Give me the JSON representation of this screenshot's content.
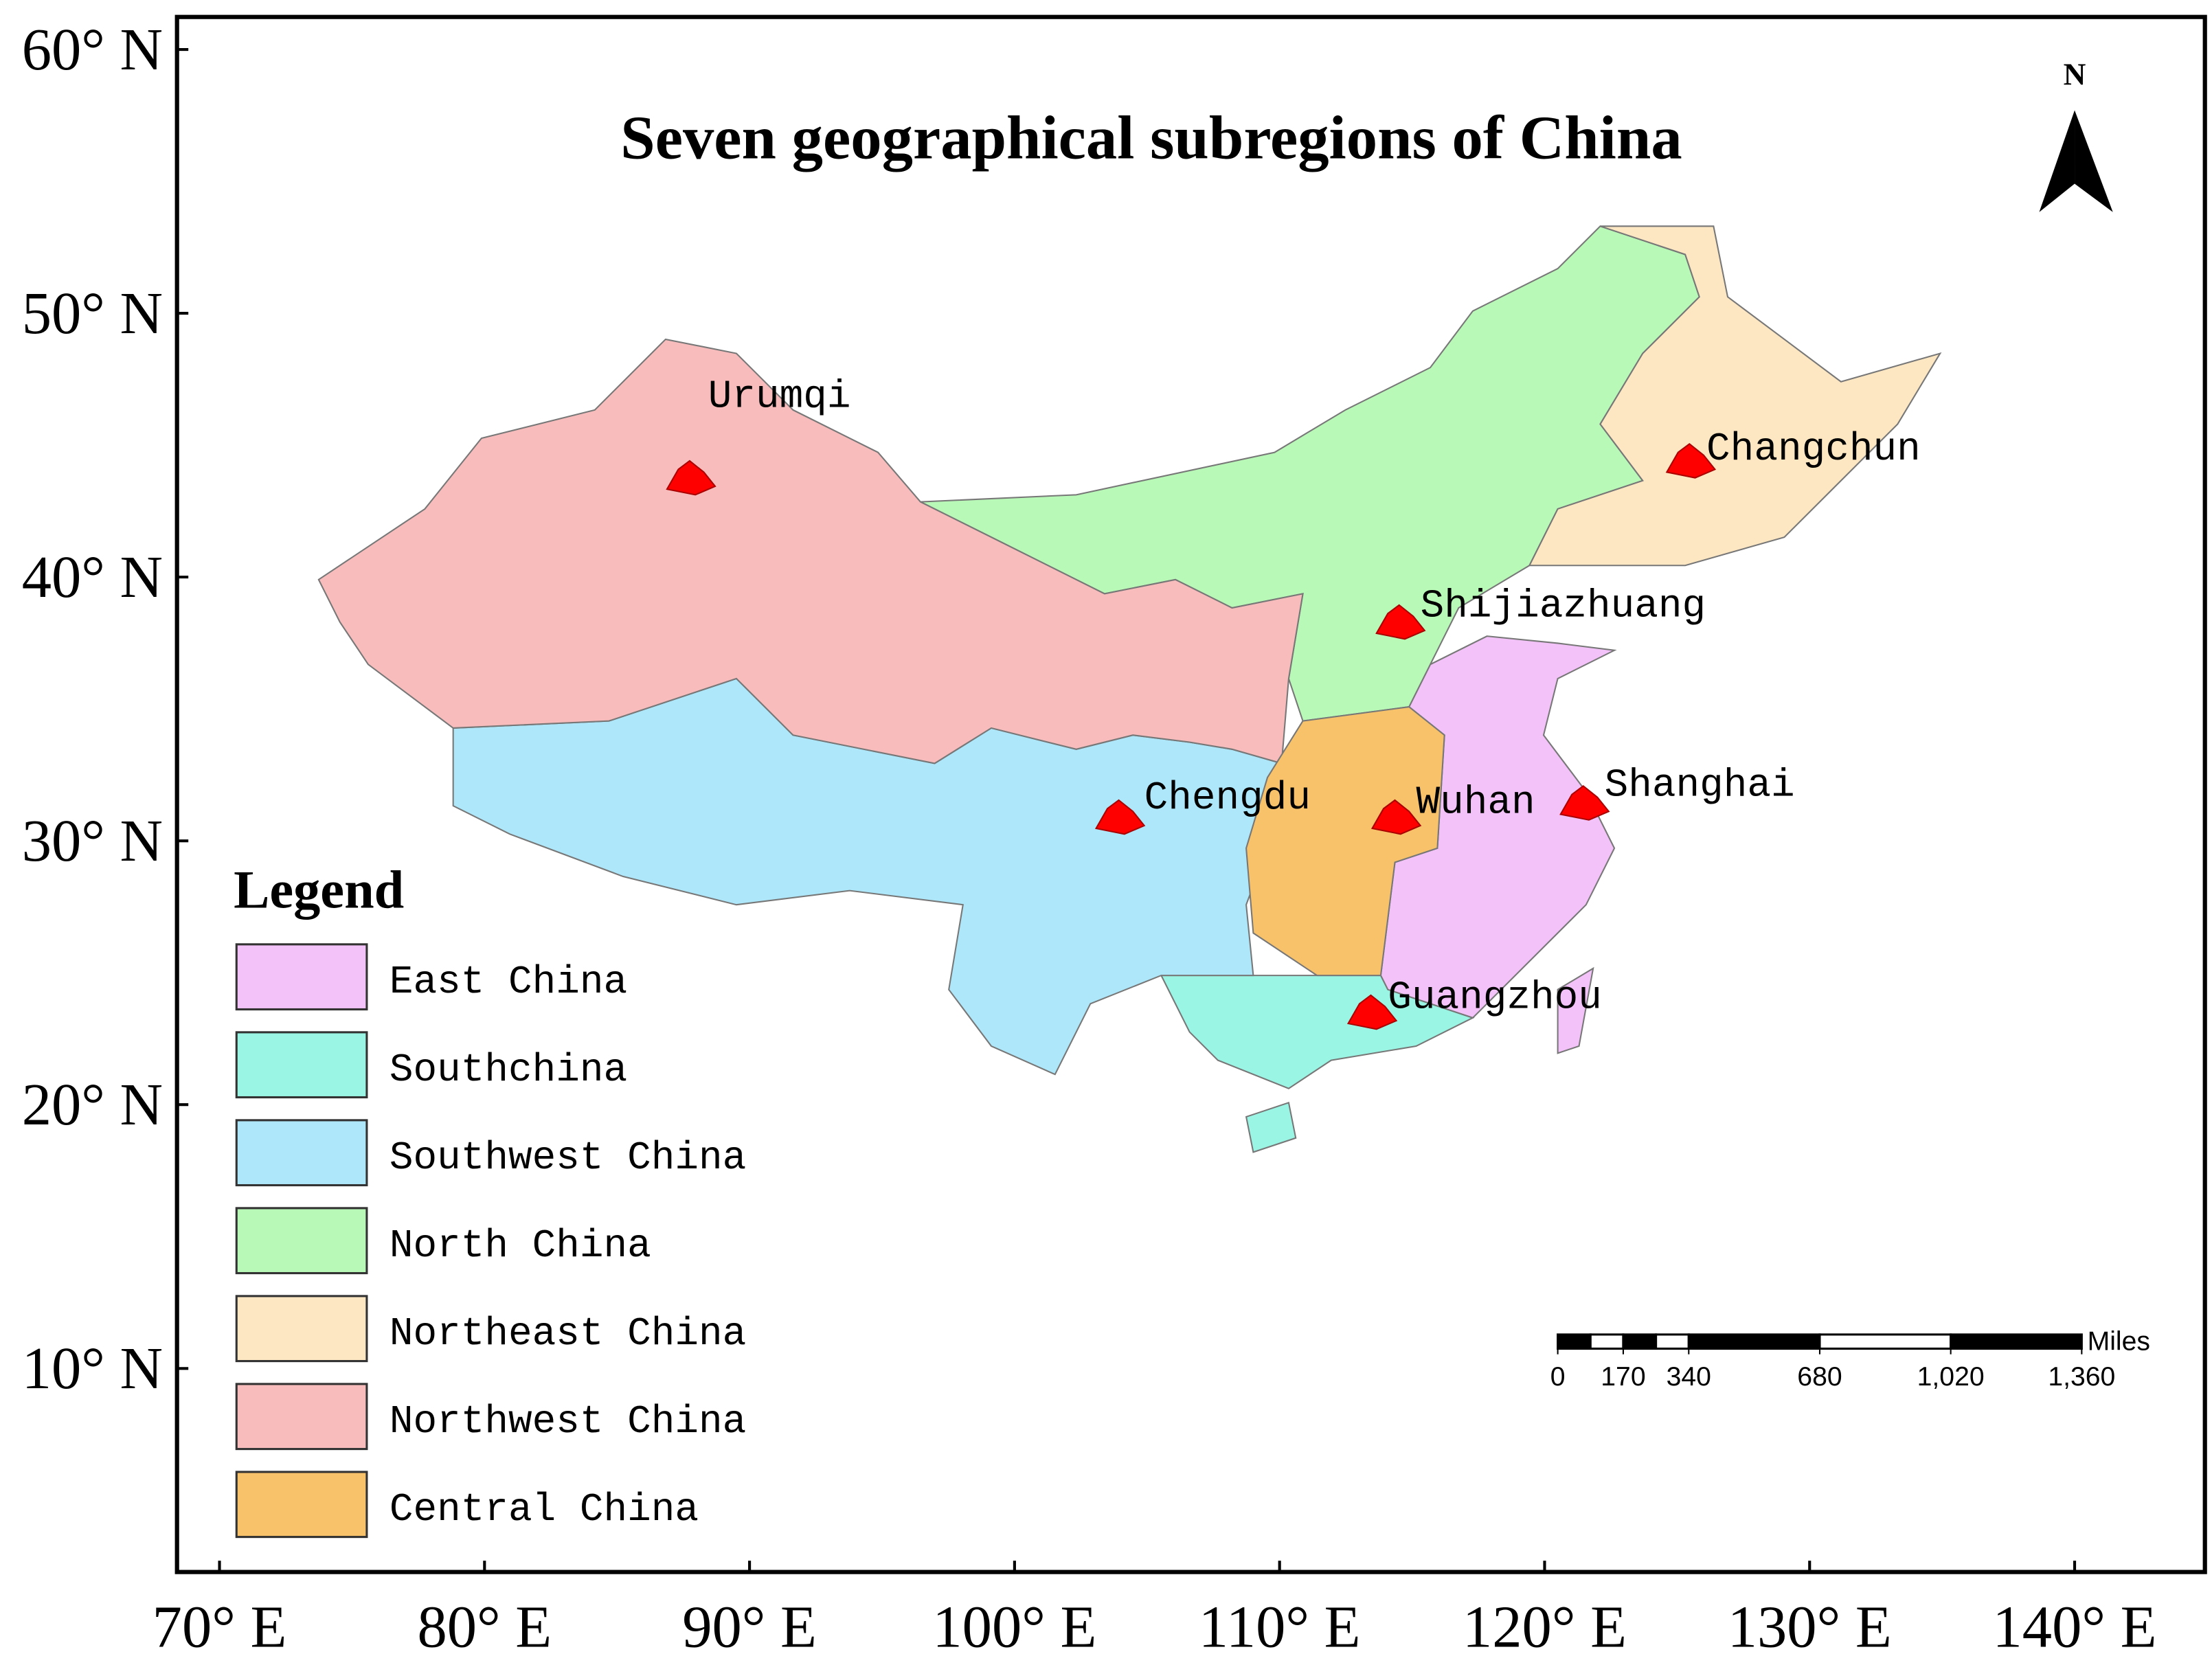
{
  "map": {
    "title": "Seven geographical subregions of China",
    "north_label": "N",
    "lon_ticks": [
      {
        "value": 70,
        "label": "70° E"
      },
      {
        "value": 80,
        "label": "80° E"
      },
      {
        "value": 90,
        "label": "90° E"
      },
      {
        "value": 100,
        "label": "100° E"
      },
      {
        "value": 110,
        "label": "110° E"
      },
      {
        "value": 120,
        "label": "120° E"
      },
      {
        "value": 130,
        "label": "130° E"
      },
      {
        "value": 140,
        "label": "140° E"
      }
    ],
    "lat_ticks": [
      {
        "value": 60,
        "label": "60° N"
      },
      {
        "value": 50,
        "label": "50° N"
      },
      {
        "value": 40,
        "label": "40° N"
      },
      {
        "value": 30,
        "label": "30° N"
      },
      {
        "value": 20,
        "label": "20° N"
      },
      {
        "value": 10,
        "label": "10° N"
      }
    ],
    "legend": {
      "title": "Legend",
      "items": [
        {
          "label": "East China",
          "color": "#f2c2f8"
        },
        {
          "label": "Southchina",
          "color": "#9af5e4"
        },
        {
          "label": "Southwest China",
          "color": "#ade7f9"
        },
        {
          "label": "North China",
          "color": "#b9f9b7"
        },
        {
          "label": "Northeast China",
          "color": "#fde7c2"
        },
        {
          "label": "Northwest China",
          "color": "#f8bcbc"
        },
        {
          "label": "Central China",
          "color": "#f8c26a"
        }
      ]
    },
    "cities": [
      "Urumqi",
      "Changchun",
      "Shijiazhuang",
      "Chengdu",
      "Wuhan",
      "Shanghai",
      "Guangzhou"
    ],
    "scale_bar": {
      "unit": "Miles",
      "ticks": [
        0,
        170,
        340,
        680,
        {
          "value": 1020,
          "label": "1,020"
        },
        {
          "value": 1360,
          "label": "1,360"
        }
      ]
    }
  }
}
